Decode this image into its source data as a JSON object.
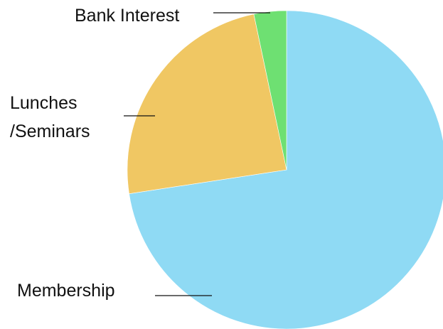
{
  "chart_data": {
    "type": "pie",
    "title": "",
    "start_angle_deg": 0,
    "direction": "clockwise",
    "slices": [
      {
        "label": "Membership",
        "label_lines": [
          "Membership"
        ],
        "value": 72.6,
        "color": "#8fdaf4"
      },
      {
        "label": "Lunches /Seminars",
        "label_lines": [
          "Lunches",
          "/Seminars"
        ],
        "value": 24.1,
        "color": "#f0c763"
      },
      {
        "label": "Bank Interest",
        "label_lines": [
          "Bank Interest"
        ],
        "value": 3.3,
        "color": "#6ee072"
      }
    ],
    "legend": "none",
    "labels": "outside-with-leader-lines"
  }
}
